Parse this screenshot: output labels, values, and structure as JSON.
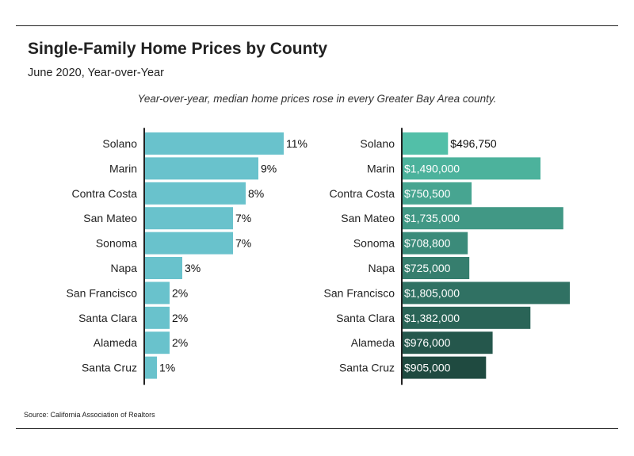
{
  "header": {
    "title": "Single-Family Home Prices by County",
    "subtitle": "June 2020, Year-over-Year"
  },
  "annotation": "Year-over-year, median home prices rose in every Greater Bay Area county.",
  "source": "Source:  California Association of Realtors",
  "colors": {
    "left_bar": "#69c2cc",
    "right_bar_top": "#52bfa8",
    "right_bar_bottom": "#1f4a40",
    "axis": "#222222"
  },
  "chart_data": [
    {
      "type": "bar",
      "orientation": "horizontal",
      "categories": [
        "Solano",
        "Marin",
        "Contra Costa",
        "San Mateo",
        "Sonoma",
        "Napa",
        "San Francisco",
        "Santa Clara",
        "Alameda",
        "Santa Cruz"
      ],
      "values": [
        11,
        9,
        8,
        7,
        7,
        3,
        2,
        2,
        2,
        1
      ],
      "value_labels": [
        "11%",
        "9%",
        "8%",
        "7%",
        "7%",
        "3%",
        "2%",
        "2%",
        "2%",
        "1%"
      ],
      "xlim": [
        0,
        11.5
      ]
    },
    {
      "type": "bar",
      "orientation": "horizontal",
      "categories": [
        "Solano",
        "Marin",
        "Contra Costa",
        "San Mateo",
        "Sonoma",
        "Napa",
        "San Francisco",
        "Santa Clara",
        "Alameda",
        "Santa Cruz"
      ],
      "values": [
        496750,
        1490000,
        750500,
        1735000,
        708800,
        725000,
        1805000,
        1382000,
        976000,
        905000
      ],
      "value_labels": [
        "$496,750",
        "$1,490,000",
        "$750,500",
        "$1,735,000",
        "$708,800",
        "$725,000",
        "$1,805,000",
        "$1,382,000",
        "$976,000",
        "$905,000"
      ],
      "xlim": [
        0,
        1805000
      ]
    }
  ]
}
